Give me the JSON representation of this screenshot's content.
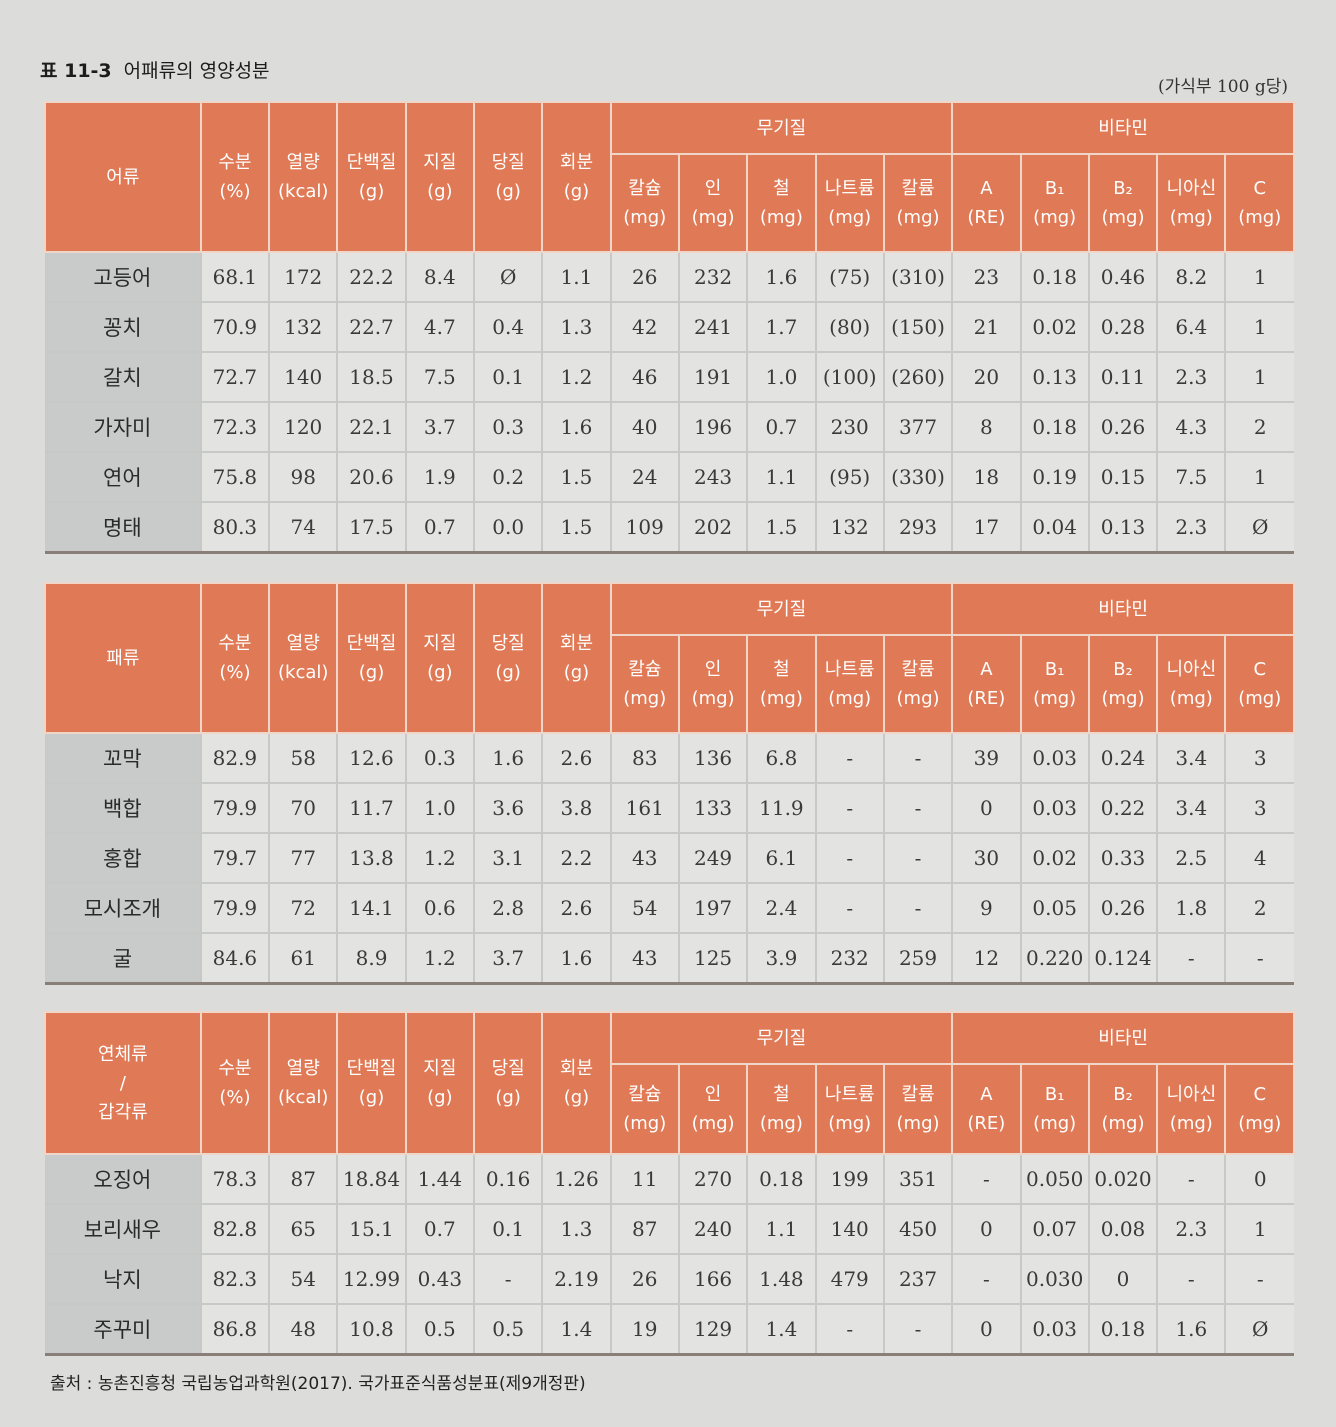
{
  "title": {
    "number": "표 11-3",
    "text": "어패류의 영양성분"
  },
  "unit_note": "(가식부 100 g당)",
  "header": {
    "group_minerals": "무기질",
    "group_vitamins": "비타민",
    "cols": [
      {
        "name": "수분",
        "unit": "(%)"
      },
      {
        "name": "열량",
        "unit": "(kcal)"
      },
      {
        "name": "단백질",
        "unit": "(g)"
      },
      {
        "name": "지질",
        "unit": "(g)"
      },
      {
        "name": "당질",
        "unit": "(g)"
      },
      {
        "name": "회분",
        "unit": "(g)"
      },
      {
        "name": "칼슘",
        "unit": "(mg)"
      },
      {
        "name": "인",
        "unit": "(mg)"
      },
      {
        "name": "철",
        "unit": "(mg)"
      },
      {
        "name": "나트륨",
        "unit": "(mg)"
      },
      {
        "name": "칼륨",
        "unit": "(mg)"
      },
      {
        "name": "A",
        "unit": "(RE)"
      },
      {
        "name": "B₁",
        "unit": "(mg)"
      },
      {
        "name": "B₂",
        "unit": "(mg)"
      },
      {
        "name": "니아신",
        "unit": "(mg)"
      },
      {
        "name": "C",
        "unit": "(mg)"
      }
    ]
  },
  "tables": [
    {
      "category_lines": [
        "어류"
      ],
      "rows": [
        {
          "name": "고등어",
          "values": [
            "68.1",
            "172",
            "22.2",
            "8.4",
            "Ø",
            "1.1",
            "26",
            "232",
            "1.6",
            "(75)",
            "(310)",
            "23",
            "0.18",
            "0.46",
            "8.2",
            "1"
          ]
        },
        {
          "name": "꽁치",
          "values": [
            "70.9",
            "132",
            "22.7",
            "4.7",
            "0.4",
            "1.3",
            "42",
            "241",
            "1.7",
            "(80)",
            "(150)",
            "21",
            "0.02",
            "0.28",
            "6.4",
            "1"
          ]
        },
        {
          "name": "갈치",
          "values": [
            "72.7",
            "140",
            "18.5",
            "7.5",
            "0.1",
            "1.2",
            "46",
            "191",
            "1.0",
            "(100)",
            "(260)",
            "20",
            "0.13",
            "0.11",
            "2.3",
            "1"
          ]
        },
        {
          "name": "가자미",
          "values": [
            "72.3",
            "120",
            "22.1",
            "3.7",
            "0.3",
            "1.6",
            "40",
            "196",
            "0.7",
            "230",
            "377",
            "8",
            "0.18",
            "0.26",
            "4.3",
            "2"
          ]
        },
        {
          "name": "연어",
          "values": [
            "75.8",
            "98",
            "20.6",
            "1.9",
            "0.2",
            "1.5",
            "24",
            "243",
            "1.1",
            "(95)",
            "(330)",
            "18",
            "0.19",
            "0.15",
            "7.5",
            "1"
          ]
        },
        {
          "name": "명태",
          "values": [
            "80.3",
            "74",
            "17.5",
            "0.7",
            "0.0",
            "1.5",
            "109",
            "202",
            "1.5",
            "132",
            "293",
            "17",
            "0.04",
            "0.13",
            "2.3",
            "Ø"
          ]
        }
      ]
    },
    {
      "category_lines": [
        "패류"
      ],
      "rows": [
        {
          "name": "꼬막",
          "values": [
            "82.9",
            "58",
            "12.6",
            "0.3",
            "1.6",
            "2.6",
            "83",
            "136",
            "6.8",
            "-",
            "-",
            "39",
            "0.03",
            "0.24",
            "3.4",
            "3"
          ]
        },
        {
          "name": "백합",
          "values": [
            "79.9",
            "70",
            "11.7",
            "1.0",
            "3.6",
            "3.8",
            "161",
            "133",
            "11.9",
            "-",
            "-",
            "0",
            "0.03",
            "0.22",
            "3.4",
            "3"
          ]
        },
        {
          "name": "홍합",
          "values": [
            "79.7",
            "77",
            "13.8",
            "1.2",
            "3.1",
            "2.2",
            "43",
            "249",
            "6.1",
            "-",
            "-",
            "30",
            "0.02",
            "0.33",
            "2.5",
            "4"
          ]
        },
        {
          "name": "모시조개",
          "values": [
            "79.9",
            "72",
            "14.1",
            "0.6",
            "2.8",
            "2.6",
            "54",
            "197",
            "2.4",
            "-",
            "-",
            "9",
            "0.05",
            "0.26",
            "1.8",
            "2"
          ]
        },
        {
          "name": "굴",
          "values": [
            "84.6",
            "61",
            "8.9",
            "1.2",
            "3.7",
            "1.6",
            "43",
            "125",
            "3.9",
            "232",
            "259",
            "12",
            "0.220",
            "0.124",
            "-",
            "-"
          ]
        }
      ]
    },
    {
      "category_lines": [
        "연체류",
        "/",
        "갑각류"
      ],
      "rows": [
        {
          "name": "오징어",
          "values": [
            "78.3",
            "87",
            "18.84",
            "1.44",
            "0.16",
            "1.26",
            "11",
            "270",
            "0.18",
            "199",
            "351",
            "-",
            "0.050",
            "0.020",
            "-",
            "0"
          ]
        },
        {
          "name": "보리새우",
          "values": [
            "82.8",
            "65",
            "15.1",
            "0.7",
            "0.1",
            "1.3",
            "87",
            "240",
            "1.1",
            "140",
            "450",
            "0",
            "0.07",
            "0.08",
            "2.3",
            "1"
          ]
        },
        {
          "name": "낙지",
          "values": [
            "82.3",
            "54",
            "12.99",
            "0.43",
            "-",
            "2.19",
            "26",
            "166",
            "1.48",
            "479",
            "237",
            "-",
            "0.030",
            "0",
            "-",
            "-"
          ]
        },
        {
          "name": "주꾸미",
          "values": [
            "86.8",
            "48",
            "10.8",
            "0.5",
            "0.5",
            "1.4",
            "19",
            "129",
            "1.4",
            "-",
            "-",
            "0",
            "0.03",
            "0.18",
            "1.6",
            "Ø"
          ]
        }
      ]
    }
  ],
  "source": "출처 : 농촌진흥청 국립농업과학원(2017). 국가표준식품성분표(제9개정판)"
}
